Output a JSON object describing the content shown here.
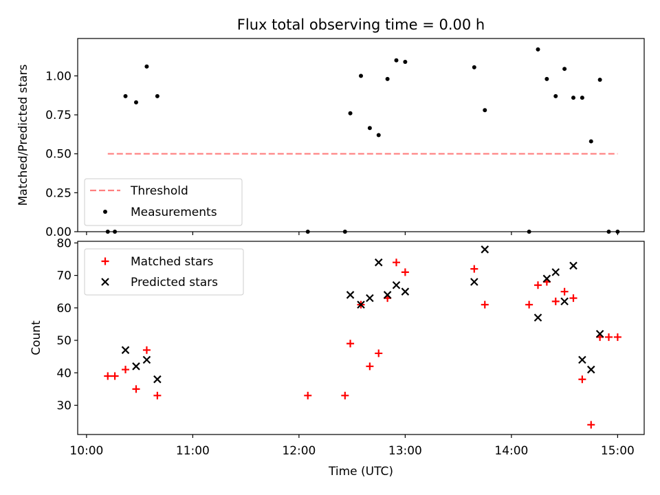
{
  "title": "Flux total observing time = 0.00 h",
  "colors": {
    "threshold": "#ff7f7f",
    "measurements": "#000000",
    "matched": "#ff0000",
    "predicted": "#000000"
  },
  "chart_data": [
    {
      "type": "scatter",
      "panel": "top",
      "ylabel": "Matched/Predicted stars",
      "ylim": [
        0,
        1.24
      ],
      "yticks": [
        0.0,
        0.25,
        0.5,
        0.75,
        1.0
      ],
      "yticklabels": [
        "0.00",
        "0.25",
        "0.50",
        "0.75",
        "1.00"
      ],
      "xlim": [
        "09:55",
        "15:15"
      ],
      "threshold": {
        "name": "Threshold",
        "value": 0.5,
        "x_start": "10:12",
        "x_end": "15:00"
      },
      "measurements": {
        "name": "Measurements",
        "points": [
          [
            "10:12",
            0.0
          ],
          [
            "10:16",
            0.0
          ],
          [
            "10:22",
            0.87
          ],
          [
            "10:28",
            0.83
          ],
          [
            "10:34",
            1.06
          ],
          [
            "10:40",
            0.87
          ],
          [
            "12:05",
            0.0
          ],
          [
            "12:26",
            0.0
          ],
          [
            "12:29",
            0.76
          ],
          [
            "12:35",
            1.0
          ],
          [
            "12:40",
            0.665
          ],
          [
            "12:45",
            0.62
          ],
          [
            "12:50",
            0.98
          ],
          [
            "12:55",
            1.1
          ],
          [
            "13:00",
            1.09
          ],
          [
            "13:39",
            1.055
          ],
          [
            "13:45",
            0.78
          ],
          [
            "14:10",
            0.0
          ],
          [
            "14:15",
            1.17
          ],
          [
            "14:20",
            0.98
          ],
          [
            "14:25",
            0.87
          ],
          [
            "14:30",
            1.045
          ],
          [
            "14:35",
            0.86
          ],
          [
            "14:40",
            0.86
          ],
          [
            "14:45",
            0.58
          ],
          [
            "14:50",
            0.975
          ],
          [
            "14:55",
            0.0
          ],
          [
            "15:00",
            0.0
          ]
        ]
      },
      "legend": {
        "placement": "lower-left",
        "entries": [
          "Threshold",
          "Measurements"
        ]
      }
    },
    {
      "type": "scatter",
      "panel": "bottom",
      "ylabel": "Count",
      "xlabel": "Time (UTC)",
      "ylim": [
        21,
        80.5
      ],
      "yticks": [
        30,
        40,
        50,
        60,
        70,
        80
      ],
      "yticklabels": [
        "30",
        "40",
        "50",
        "60",
        "70",
        "80"
      ],
      "xlim": [
        "09:55",
        "15:15"
      ],
      "xticks": [
        "10:00",
        "11:00",
        "12:00",
        "13:00",
        "14:00",
        "15:00"
      ],
      "xticklabels": [
        "10:00",
        "11:00",
        "12:00",
        "13:00",
        "14:00",
        "15:00"
      ],
      "series": [
        {
          "name": "Matched stars",
          "marker": "+",
          "points": [
            [
              "10:12",
              39
            ],
            [
              "10:16",
              39
            ],
            [
              "10:22",
              41
            ],
            [
              "10:28",
              35
            ],
            [
              "10:34",
              47
            ],
            [
              "10:40",
              33
            ],
            [
              "12:05",
              33
            ],
            [
              "12:26",
              33
            ],
            [
              "12:29",
              49
            ],
            [
              "12:35",
              61
            ],
            [
              "12:40",
              42
            ],
            [
              "12:45",
              46
            ],
            [
              "12:50",
              63
            ],
            [
              "12:55",
              74
            ],
            [
              "13:00",
              71
            ],
            [
              "13:39",
              72
            ],
            [
              "13:45",
              61
            ],
            [
              "14:10",
              61
            ],
            [
              "14:15",
              67
            ],
            [
              "14:20",
              68
            ],
            [
              "14:25",
              62
            ],
            [
              "14:30",
              65
            ],
            [
              "14:35",
              63
            ],
            [
              "14:40",
              38
            ],
            [
              "14:45",
              24
            ],
            [
              "14:50",
              51
            ],
            [
              "14:55",
              51
            ],
            [
              "15:00",
              51
            ]
          ]
        },
        {
          "name": "Predicted stars",
          "marker": "x",
          "points": [
            [
              "10:22",
              47
            ],
            [
              "10:28",
              42
            ],
            [
              "10:34",
              44
            ],
            [
              "10:40",
              38
            ],
            [
              "12:29",
              64
            ],
            [
              "12:35",
              61
            ],
            [
              "12:40",
              63
            ],
            [
              "12:45",
              74
            ],
            [
              "12:50",
              64
            ],
            [
              "12:55",
              67
            ],
            [
              "13:00",
              65
            ],
            [
              "13:39",
              68
            ],
            [
              "13:45",
              78
            ],
            [
              "14:15",
              57
            ],
            [
              "14:20",
              69
            ],
            [
              "14:25",
              71
            ],
            [
              "14:30",
              62
            ],
            [
              "14:35",
              73
            ],
            [
              "14:40",
              44
            ],
            [
              "14:45",
              41
            ],
            [
              "14:50",
              52
            ]
          ]
        }
      ],
      "legend": {
        "placement": "top-left",
        "entries": [
          "Matched stars",
          "Predicted stars"
        ]
      }
    }
  ]
}
